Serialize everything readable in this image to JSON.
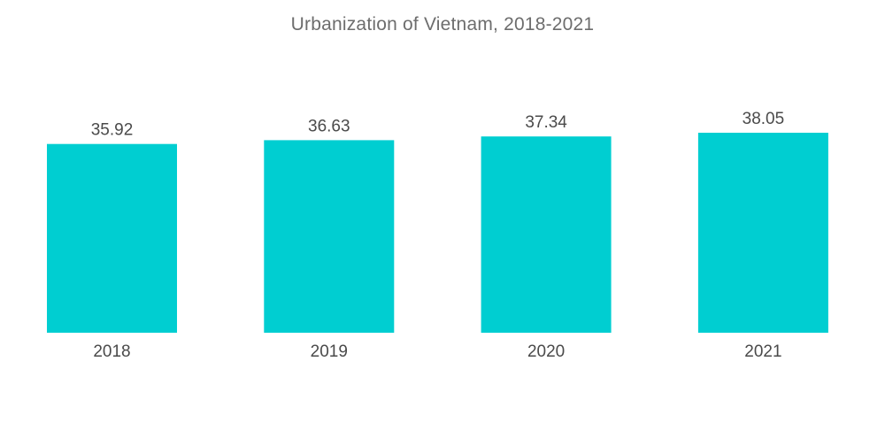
{
  "title": "Urbanization of Vietnam, 2018-2021",
  "chart_data": {
    "type": "bar",
    "title": "Urbanization of Vietnam, 2018-2021",
    "categories": [
      "2018",
      "2019",
      "2020",
      "2021"
    ],
    "values": [
      35.92,
      36.63,
      37.34,
      38.05
    ],
    "value_labels": [
      "35.92",
      "36.63",
      "37.34",
      "38.05"
    ],
    "xlabel": "",
    "ylabel": "",
    "ylim": [
      0,
      38.05
    ],
    "grid": false,
    "legend": "none",
    "bar_color": "#00ced1"
  }
}
